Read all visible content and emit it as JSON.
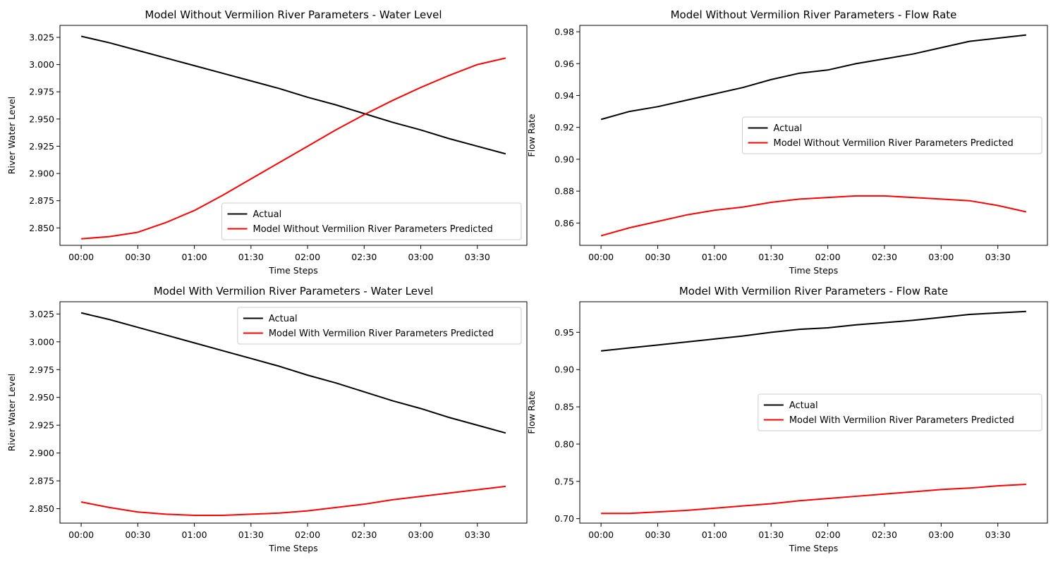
{
  "x_tick_labels": [
    "00:00",
    "00:30",
    "01:00",
    "01:30",
    "02:00",
    "02:30",
    "03:00",
    "03:30"
  ],
  "chart_data": [
    {
      "type": "line",
      "title": "Model Without Vermilion River Parameters - Water Level",
      "xlabel": "Time Steps",
      "ylabel": "River Water Level",
      "x": [
        0,
        15,
        30,
        45,
        60,
        75,
        90,
        105,
        120,
        135,
        150,
        165,
        180,
        195,
        210,
        225
      ],
      "ylim": [
        2.834,
        3.036
      ],
      "yticks": [
        2.85,
        2.875,
        2.9,
        2.925,
        2.95,
        2.975,
        3.0,
        3.025
      ],
      "ytick_labels": [
        "2.850",
        "2.875",
        "2.900",
        "2.925",
        "2.950",
        "2.975",
        "3.000",
        "3.025"
      ],
      "legend_loc": "lower-right",
      "series": [
        {
          "name": "Actual",
          "color": "#000000",
          "values": [
            3.026,
            3.02,
            3.013,
            3.006,
            2.999,
            2.992,
            2.985,
            2.978,
            2.97,
            2.963,
            2.955,
            2.947,
            2.94,
            2.932,
            2.925,
            2.918
          ]
        },
        {
          "name": "Model Without Vermilion River Parameters Predicted",
          "color": "#ff0000",
          "values": [
            2.84,
            2.842,
            2.846,
            2.855,
            2.866,
            2.88,
            2.895,
            2.91,
            2.925,
            2.94,
            2.954,
            2.967,
            2.979,
            2.99,
            3.0,
            3.006
          ]
        }
      ]
    },
    {
      "type": "line",
      "title": "Model Without Vermilion River Parameters - Flow Rate",
      "xlabel": "Time Steps",
      "ylabel": "Flow Rate",
      "x": [
        0,
        15,
        30,
        45,
        60,
        75,
        90,
        105,
        120,
        135,
        150,
        165,
        180,
        195,
        210,
        225
      ],
      "ylim": [
        0.846,
        0.984
      ],
      "yticks": [
        0.86,
        0.88,
        0.9,
        0.92,
        0.94,
        0.96,
        0.98
      ],
      "ytick_labels": [
        "0.86",
        "0.88",
        "0.90",
        "0.92",
        "0.94",
        "0.96",
        "0.98"
      ],
      "legend_loc": "center-right",
      "series": [
        {
          "name": "Actual",
          "color": "#000000",
          "values": [
            0.925,
            0.93,
            0.933,
            0.937,
            0.941,
            0.945,
            0.95,
            0.954,
            0.956,
            0.96,
            0.963,
            0.966,
            0.97,
            0.974,
            0.976,
            0.978
          ]
        },
        {
          "name": "Model Without Vermilion River Parameters Predicted",
          "color": "#ff0000",
          "values": [
            0.852,
            0.857,
            0.861,
            0.865,
            0.868,
            0.87,
            0.873,
            0.875,
            0.876,
            0.877,
            0.877,
            0.876,
            0.875,
            0.874,
            0.871,
            0.867
          ]
        }
      ]
    },
    {
      "type": "line",
      "title": "Model With Vermilion River Parameters - Water Level",
      "xlabel": "Time Steps",
      "ylabel": "River Water Level",
      "x": [
        0,
        15,
        30,
        45,
        60,
        75,
        90,
        105,
        120,
        135,
        150,
        165,
        180,
        195,
        210,
        225
      ],
      "ylim": [
        2.837,
        3.036
      ],
      "yticks": [
        2.85,
        2.875,
        2.9,
        2.925,
        2.95,
        2.975,
        3.0,
        3.025
      ],
      "ytick_labels": [
        "2.850",
        "2.875",
        "2.900",
        "2.925",
        "2.950",
        "2.975",
        "3.000",
        "3.025"
      ],
      "legend_loc": "upper-right",
      "series": [
        {
          "name": "Actual",
          "color": "#000000",
          "values": [
            3.026,
            3.02,
            3.013,
            3.006,
            2.999,
            2.992,
            2.985,
            2.978,
            2.97,
            2.963,
            2.955,
            2.947,
            2.94,
            2.932,
            2.925,
            2.918
          ]
        },
        {
          "name": "Model With Vermilion River Parameters Predicted",
          "color": "#ff0000",
          "values": [
            2.856,
            2.851,
            2.847,
            2.845,
            2.844,
            2.844,
            2.845,
            2.846,
            2.848,
            2.851,
            2.854,
            2.858,
            2.861,
            2.864,
            2.867,
            2.87
          ]
        }
      ]
    },
    {
      "type": "line",
      "title": "Model With Vermilion River Parameters - Flow Rate",
      "xlabel": "Time Steps",
      "ylabel": "Flow Rate",
      "x": [
        0,
        15,
        30,
        45,
        60,
        75,
        90,
        105,
        120,
        135,
        150,
        165,
        180,
        195,
        210,
        225
      ],
      "ylim": [
        0.694,
        0.991
      ],
      "yticks": [
        0.7,
        0.75,
        0.8,
        0.85,
        0.9,
        0.95
      ],
      "ytick_labels": [
        "0.70",
        "0.75",
        "0.80",
        "0.85",
        "0.90",
        "0.95"
      ],
      "legend_loc": "center-right",
      "series": [
        {
          "name": "Actual",
          "color": "#000000",
          "values": [
            0.925,
            0.929,
            0.933,
            0.937,
            0.941,
            0.945,
            0.95,
            0.954,
            0.956,
            0.96,
            0.963,
            0.966,
            0.97,
            0.974,
            0.976,
            0.978
          ]
        },
        {
          "name": "Model With Vermilion River Parameters Predicted",
          "color": "#ff0000",
          "values": [
            0.707,
            0.707,
            0.709,
            0.711,
            0.714,
            0.717,
            0.72,
            0.724,
            0.727,
            0.73,
            0.733,
            0.736,
            0.739,
            0.741,
            0.744,
            0.746
          ]
        }
      ]
    }
  ]
}
